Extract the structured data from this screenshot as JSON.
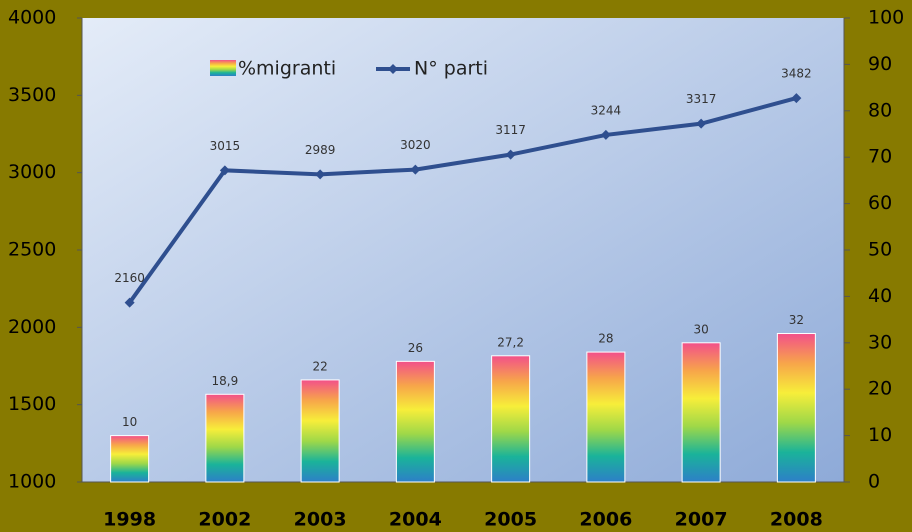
{
  "chart_data": {
    "type": "bar-line",
    "categories": [
      "1998",
      "2002",
      "2003",
      "2004",
      "2005",
      "2006",
      "2007",
      "2008"
    ],
    "series": [
      {
        "name": "%migranti",
        "type": "bar",
        "axis": "y2",
        "colors": [
          "#f2508a",
          "#f7a54a",
          "#f7ee3a",
          "#9fd848",
          "#1ab39a",
          "#2d7fc8"
        ],
        "values": [
          10,
          18.9,
          22,
          26,
          27.2,
          28,
          30,
          32
        ],
        "value_labels": [
          "10",
          "18,9",
          "22",
          "26",
          "27,2",
          "28",
          "30",
          "32"
        ]
      },
      {
        "name": "N° parti",
        "type": "line",
        "color": "#2f4f8f",
        "values": [
          2160,
          3015,
          2989,
          3020,
          3117,
          3244,
          3317,
          3482
        ]
      }
    ],
    "ylim": [
      1000,
      4000
    ],
    "yticks": [
      1000,
      1500,
      2000,
      2500,
      3000,
      3500,
      4000
    ],
    "y2lim": [
      0,
      100
    ],
    "y2ticks": [
      0,
      10,
      20,
      30,
      40,
      50,
      60,
      70,
      80,
      90,
      100
    ],
    "legend": "top"
  }
}
